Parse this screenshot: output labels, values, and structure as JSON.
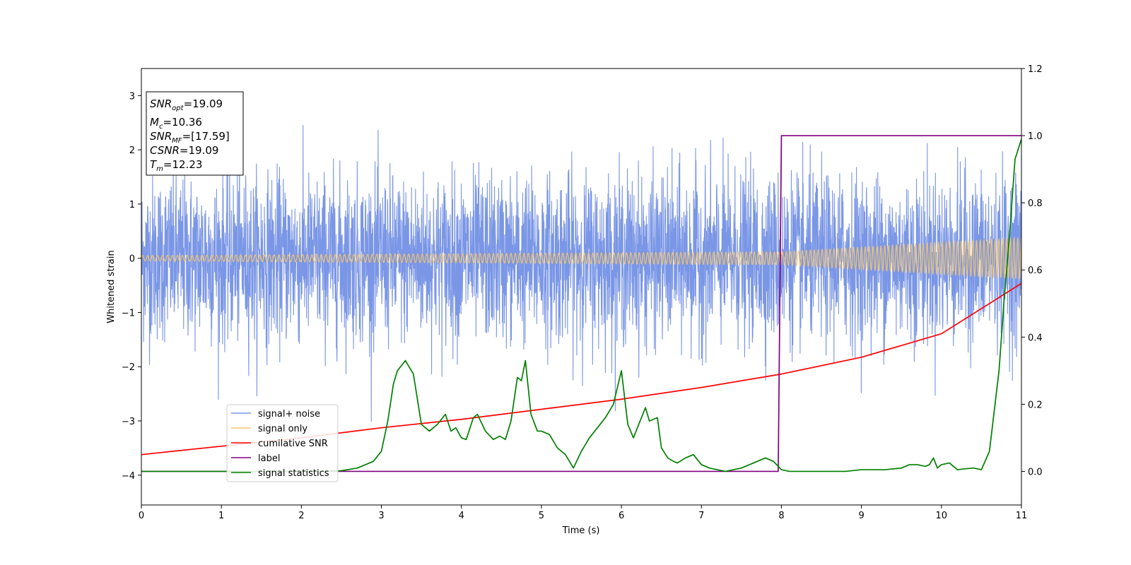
{
  "chart_data": {
    "type": "line",
    "title": "",
    "xlabel": "Time (s)",
    "ylabel": "Whitened strain",
    "xlim": [
      0,
      11
    ],
    "ylim_left": [
      -4.55,
      3.5
    ],
    "ylim_right": [
      -0.1,
      1.2
    ],
    "x_ticks": [
      "0",
      "1",
      "2",
      "3",
      "4",
      "5",
      "6",
      "7",
      "8",
      "9",
      "10",
      "11"
    ],
    "y_ticks_left": [
      "3",
      "2",
      "1",
      "0",
      "−1",
      "−2",
      "−3",
      "−4"
    ],
    "y_ticks_right": [
      "1.2",
      "1.0",
      "0.8",
      "0.6",
      "0.4",
      "0.2",
      "0.0"
    ],
    "grid": false,
    "legend_position": "lower-left",
    "stats_box": {
      "snr_opt": "=19.09",
      "mc": "=10.36",
      "snr_mf": "=[17.59]",
      "csnr": "=19.09",
      "tm": "=12.23"
    },
    "series": [
      {
        "name": "signal+ noise",
        "axis": "left",
        "color": "#7a96e6",
        "description": "whitened strain noise, roughly Gaussian with sigma about 0.75, spikes up to about 3.2",
        "noise_sigma": 0.75,
        "max_excursion": 3.2
      },
      {
        "name": "signal only",
        "axis": "left",
        "color": "#f5c46a",
        "description": "chirp waveform with slowly increasing amplitude",
        "amplitude": [
          [
            0,
            0.05
          ],
          [
            8,
            0.12
          ],
          [
            11,
            0.38
          ]
        ]
      },
      {
        "name": "cumilative SNR",
        "axis": "right",
        "color": "#ff0000",
        "x": [
          0,
          1,
          2,
          3,
          4,
          5,
          6,
          7,
          8,
          9,
          10,
          11
        ],
        "values": [
          0.05,
          0.075,
          0.1,
          0.13,
          0.155,
          0.185,
          0.215,
          0.25,
          0.29,
          0.34,
          0.41,
          0.56
        ]
      },
      {
        "name": "label",
        "axis": "right",
        "color": "#800080",
        "x": [
          0,
          7.96,
          8.0,
          11
        ],
        "values": [
          0.0,
          0.0,
          1.0,
          1.0
        ]
      },
      {
        "name": "signal statistics",
        "axis": "right",
        "color": "#008000",
        "x": [
          0,
          1,
          2,
          2.5,
          2.7,
          2.8,
          2.9,
          3.0,
          3.08,
          3.15,
          3.2,
          3.3,
          3.4,
          3.5,
          3.6,
          3.7,
          3.8,
          3.87,
          3.93,
          4.0,
          4.06,
          4.15,
          4.2,
          4.3,
          4.4,
          4.48,
          4.55,
          4.62,
          4.7,
          4.75,
          4.8,
          4.87,
          4.95,
          5.0,
          5.1,
          5.2,
          5.3,
          5.4,
          5.5,
          5.6,
          5.7,
          5.8,
          5.9,
          6.0,
          6.08,
          6.15,
          6.2,
          6.3,
          6.35,
          6.45,
          6.5,
          6.58,
          6.65,
          6.7,
          6.8,
          6.9,
          7.0,
          7.1,
          7.2,
          7.3,
          7.4,
          7.5,
          7.6,
          7.7,
          7.8,
          7.9,
          8.0,
          8.1,
          8.2,
          8.3,
          8.4,
          8.6,
          8.8,
          9.0,
          9.3,
          9.5,
          9.6,
          9.7,
          9.8,
          9.85,
          9.9,
          9.95,
          10.0,
          10.1,
          10.2,
          10.3,
          10.4,
          10.5,
          10.6,
          10.65,
          10.72,
          10.78,
          10.85,
          10.92,
          11.0
        ],
        "values": [
          0.0,
          0.0,
          0.0,
          0.002,
          0.01,
          0.02,
          0.03,
          0.06,
          0.15,
          0.26,
          0.3,
          0.33,
          0.29,
          0.14,
          0.12,
          0.14,
          0.17,
          0.12,
          0.13,
          0.1,
          0.095,
          0.16,
          0.17,
          0.12,
          0.095,
          0.105,
          0.095,
          0.15,
          0.28,
          0.27,
          0.33,
          0.17,
          0.12,
          0.12,
          0.11,
          0.07,
          0.05,
          0.01,
          0.06,
          0.1,
          0.13,
          0.16,
          0.2,
          0.3,
          0.14,
          0.1,
          0.13,
          0.19,
          0.15,
          0.16,
          0.07,
          0.04,
          0.03,
          0.025,
          0.04,
          0.05,
          0.02,
          0.01,
          0.005,
          0.0,
          0.005,
          0.01,
          0.02,
          0.03,
          0.04,
          0.03,
          0.005,
          0.0,
          0.0,
          0.0,
          0.0,
          0.0,
          0.0,
          0.005,
          0.005,
          0.01,
          0.02,
          0.02,
          0.015,
          0.02,
          0.04,
          0.01,
          0.02,
          0.025,
          0.005,
          0.008,
          0.01,
          0.005,
          0.06,
          0.16,
          0.3,
          0.5,
          0.7,
          0.93,
          0.99
        ]
      }
    ]
  }
}
